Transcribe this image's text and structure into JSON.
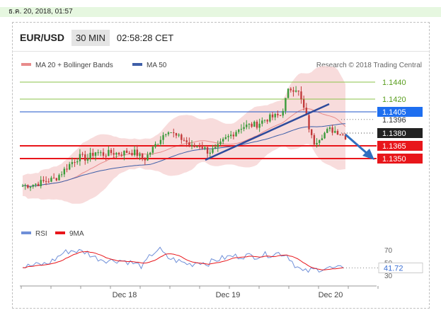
{
  "top_bar": {
    "datetime": "ธ.ค. 20, 2018, 01:57"
  },
  "header": {
    "pair": "EUR/USD",
    "timeframe": "30 MIN",
    "clock": "02:58:28 CET"
  },
  "legend": {
    "ma20": "MA 20 + Bollinger Bands",
    "ma50": "MA 50",
    "credit": "Research © 2018 Trading Central"
  },
  "colors": {
    "resistance_green": "#8bc34a",
    "blue": "#1e56c8",
    "red": "#e8161b",
    "black": "#222222",
    "ma20": "#e88b8b",
    "ma50": "#3f5fa8"
  },
  "chart_data": {
    "type": "candlestick",
    "instrument": "EUR/USD",
    "interval": "30 MIN",
    "ylim": [
      1.1305,
      1.145
    ],
    "x_ticks": [
      "Dec 18",
      "Dec 19",
      "Dec 20"
    ],
    "levels": [
      {
        "value": 1.144,
        "label": "1.1440",
        "style": "green-line"
      },
      {
        "value": 1.142,
        "label": "1.1420",
        "style": "green-line"
      },
      {
        "value": 1.1405,
        "label": "1.1405",
        "style": "blue-line"
      },
      {
        "value": 1.1396,
        "label": "1.1396",
        "style": "dotted-gray"
      },
      {
        "value": 1.138,
        "label": "1.1380",
        "style": "current-price"
      },
      {
        "value": 1.1365,
        "label": "1.1365",
        "style": "red-line"
      },
      {
        "value": 1.135,
        "label": "1.1350",
        "style": "red-line"
      }
    ],
    "price_path": [
      1.1318,
      1.1319,
      1.1321,
      1.1324,
      1.1326,
      1.1335,
      1.1345,
      1.1352,
      1.135,
      1.1358,
      1.1355,
      1.1357,
      1.1356,
      1.1358,
      1.1357,
      1.1348,
      1.136,
      1.1373,
      1.1385,
      1.1376,
      1.1372,
      1.1363,
      1.1366,
      1.1358,
      1.1361,
      1.1372,
      1.1379,
      1.1387,
      1.1389,
      1.139,
      1.1396,
      1.1399,
      1.1401,
      1.1432,
      1.1433,
      1.1404,
      1.1368,
      1.1377,
      1.1384,
      1.1382,
      1.1376
    ],
    "rsi": {
      "period_label": "RSI",
      "ma_label": "9MA",
      "ylim": [
        25,
        80
      ],
      "ticks": [
        70,
        50,
        30
      ],
      "current": "41.72",
      "values": [
        43,
        45,
        47,
        48,
        55,
        65,
        69,
        68,
        66,
        58,
        55,
        53,
        54,
        52,
        48,
        44,
        62,
        72,
        58,
        54,
        50,
        47,
        52,
        48,
        54,
        57,
        60,
        60,
        61,
        60,
        62,
        63,
        65,
        62,
        46,
        35,
        38,
        40,
        42,
        40,
        41.72
      ]
    }
  }
}
